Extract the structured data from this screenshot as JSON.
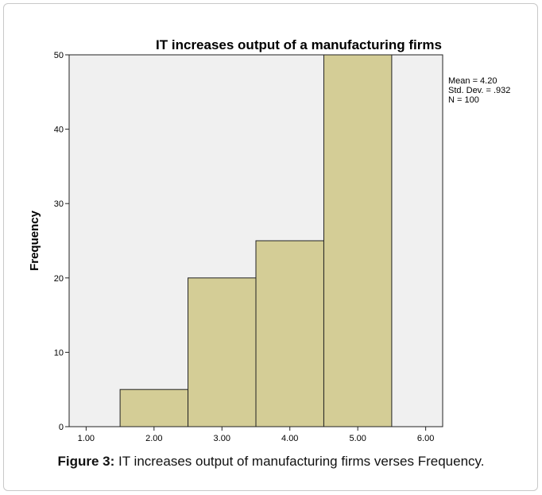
{
  "chart_data": {
    "type": "bar",
    "title": "IT increases output of a manufacturing firms",
    "xlabel": "",
    "ylabel": "Frequency",
    "x_ticks": [
      "1.00",
      "2.00",
      "3.00",
      "4.00",
      "5.00",
      "6.00"
    ],
    "xlim": [
      0.75,
      6.25
    ],
    "y_ticks": [
      "0",
      "10",
      "20",
      "30",
      "40",
      "50"
    ],
    "ylim": [
      0,
      50
    ],
    "bins": [
      {
        "from": 1.5,
        "to": 2.5,
        "value": 5
      },
      {
        "from": 2.5,
        "to": 3.5,
        "value": 20
      },
      {
        "from": 3.5,
        "to": 4.5,
        "value": 25
      },
      {
        "from": 4.5,
        "to": 5.5,
        "value": 50
      }
    ],
    "stats": [
      "Mean = 4.20",
      "Std. Dev. = .932",
      "N = 100"
    ],
    "legend_position": "top-right",
    "grid": false,
    "colors": {
      "bar_fill": "#d4cd96",
      "bar_stroke": "#222222",
      "plot_bg": "#f0f0f0"
    }
  },
  "caption": {
    "label": "Figure 3:",
    "text": " IT increases output of manufacturing firms verses Frequency."
  }
}
